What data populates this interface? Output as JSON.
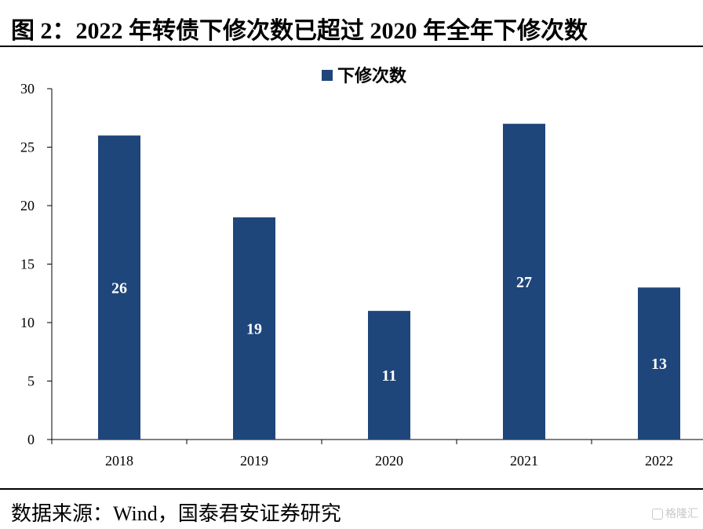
{
  "figure": {
    "title": "图 2：2022 年转债下修次数已超过 2020 年全年下修次数",
    "source": "数据来源：Wind，国泰君安证券研究",
    "watermark": "格隆汇"
  },
  "chart_data": {
    "type": "bar",
    "categories": [
      "2018",
      "2019",
      "2020",
      "2021",
      "2022"
    ],
    "series": [
      {
        "name": "下修次数",
        "values": [
          26,
          19,
          11,
          27,
          13
        ],
        "color": "#1F467B"
      }
    ],
    "data_labels": [
      "26",
      "19",
      "11",
      "27",
      "13"
    ],
    "ylim": [
      0,
      30
    ],
    "yticks": [
      0,
      5,
      10,
      15,
      20,
      25,
      30
    ],
    "xlabel": "",
    "ylabel": "",
    "grid": false,
    "legend_position": "top-center",
    "label_color": "#ffffff"
  }
}
